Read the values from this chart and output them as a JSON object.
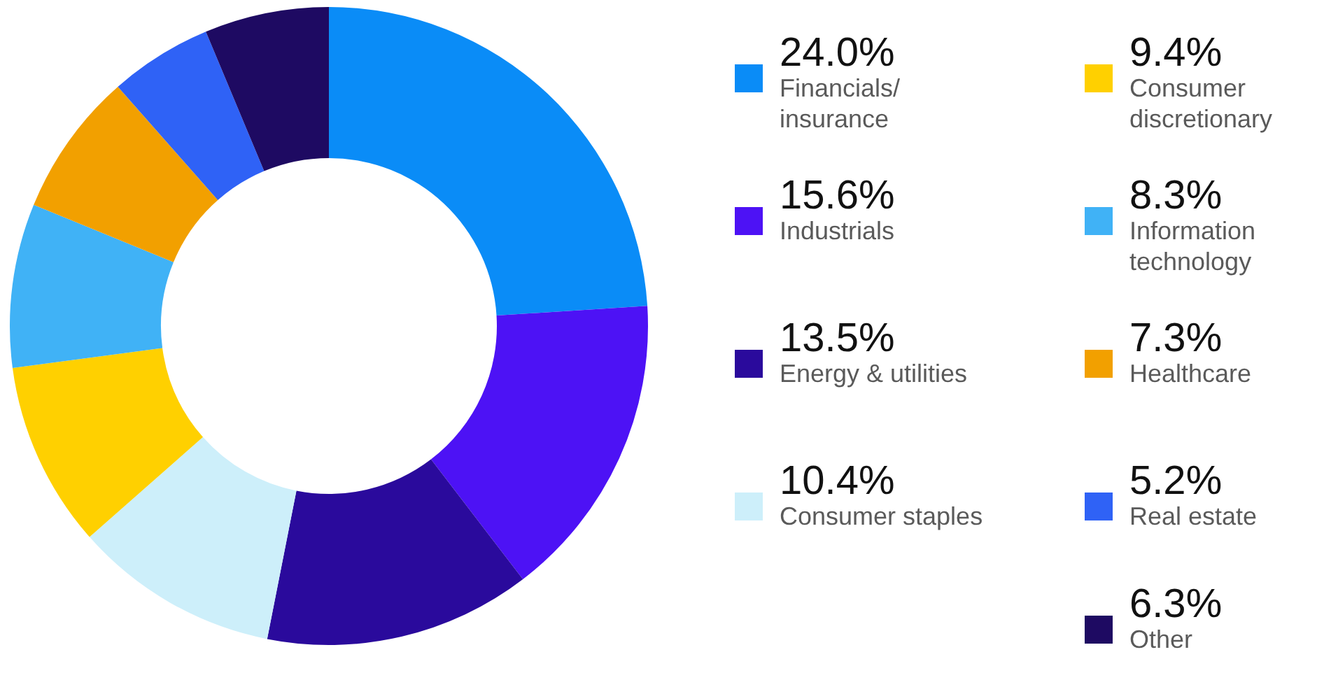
{
  "chart_data": {
    "type": "donut",
    "categories": [
      "Financials/ insurance",
      "Industrials",
      "Energy & utilities",
      "Consumer staples",
      "Consumer discretionary",
      "Information technology",
      "Healthcare",
      "Real estate",
      "Other"
    ],
    "values": [
      24.0,
      15.6,
      13.5,
      10.4,
      9.4,
      8.3,
      7.3,
      5.2,
      6.3
    ],
    "value_labels": [
      "24.0%",
      "15.6%",
      "13.5%",
      "10.4%",
      "9.4%",
      "8.3%",
      "7.3%",
      "5.2%",
      "6.3%"
    ],
    "colors": [
      "#0a8cf7",
      "#4d12f5",
      "#2a0a9c",
      "#cdeffa",
      "#ffd000",
      "#40b2f6",
      "#f2a000",
      "#2f62f6",
      "#1e0a62"
    ],
    "legend": "right"
  }
}
